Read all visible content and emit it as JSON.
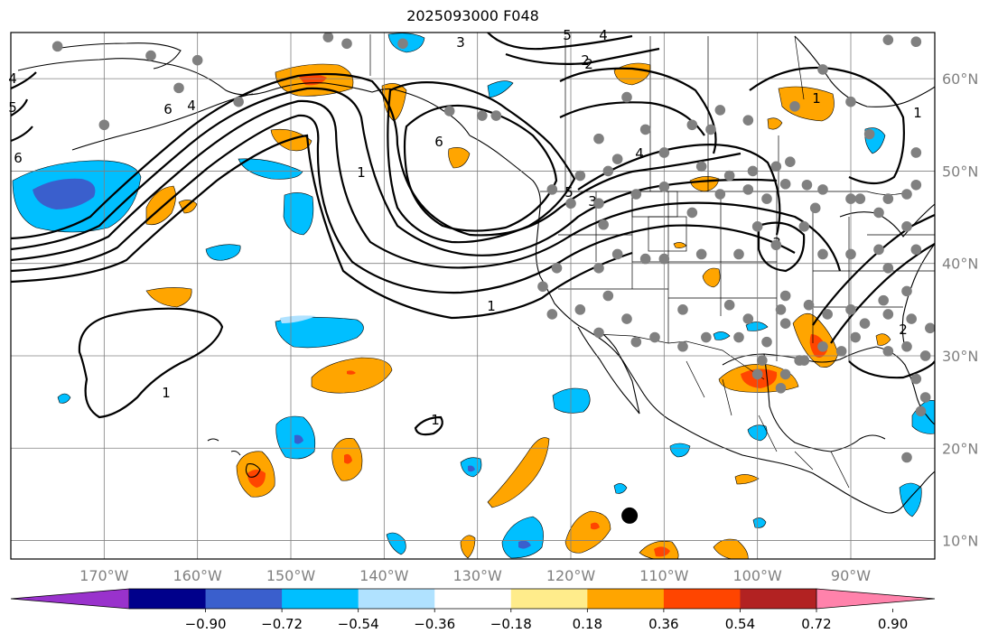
{
  "title": "2025093000 F048",
  "map": {
    "projection": "PlateCarree",
    "lon_range": [
      -180,
      -81
    ],
    "lat_range": [
      8,
      65
    ],
    "gridlines": true,
    "lon_ticks": [
      {
        "value": -170,
        "label": "170°W"
      },
      {
        "value": -160,
        "label": "160°W"
      },
      {
        "value": -150,
        "label": "150°W"
      },
      {
        "value": -140,
        "label": "140°W"
      },
      {
        "value": -130,
        "label": "130°W"
      },
      {
        "value": -120,
        "label": "120°W"
      },
      {
        "value": -110,
        "label": "110°W"
      },
      {
        "value": -100,
        "label": "100°W"
      },
      {
        "value": -90,
        "label": "90°W"
      }
    ],
    "lat_ticks": [
      {
        "value": 60,
        "label": "60°N"
      },
      {
        "value": 50,
        "label": "50°N"
      },
      {
        "value": 40,
        "label": "40°N"
      },
      {
        "value": 30,
        "label": "30°N"
      },
      {
        "value": 20,
        "label": "20°N"
      },
      {
        "value": 10,
        "label": "10°N"
      }
    ],
    "storm_marker": {
      "lon": -113.7,
      "lat": 12.7,
      "color": "#000000"
    },
    "station_color": "#808080",
    "stations": [
      [
        -175,
        63.5
      ],
      [
        -165,
        62.5
      ],
      [
        -160,
        62
      ],
      [
        -162,
        59
      ],
      [
        -155.6,
        57.5
      ],
      [
        -170,
        55
      ],
      [
        -146,
        64.5
      ],
      [
        -144,
        63.8
      ],
      [
        -138,
        63.8
      ],
      [
        -133,
        56.5
      ],
      [
        -129.5,
        56.0
      ],
      [
        -128,
        56
      ],
      [
        -119,
        49.5
      ],
      [
        -116.5,
        44.2
      ],
      [
        -117,
        53.5
      ],
      [
        -122,
        48
      ],
      [
        -116,
        50
      ],
      [
        -114,
        58
      ],
      [
        -112,
        54.5
      ],
      [
        -107,
        55
      ],
      [
        -105,
        54.5
      ],
      [
        -104,
        56.6
      ],
      [
        -101,
        55.5
      ],
      [
        -96,
        57
      ],
      [
        -93,
        61
      ],
      [
        -86,
        64.2
      ],
      [
        -83,
        64
      ],
      [
        -90,
        57.5
      ],
      [
        -88,
        54
      ],
      [
        -83,
        52
      ],
      [
        -83,
        48.5
      ],
      [
        -87,
        45.5
      ],
      [
        -90,
        47
      ],
      [
        -94.7,
        48.5
      ],
      [
        -93.8,
        46
      ],
      [
        -97,
        48.6
      ],
      [
        -99,
        47
      ],
      [
        -101,
        48
      ],
      [
        -104,
        47.5
      ],
      [
        -107,
        45.5
      ],
      [
        -110,
        48.3
      ],
      [
        -113,
        47.5
      ],
      [
        -117,
        46.5
      ],
      [
        -120,
        46.5
      ],
      [
        -115,
        51.3
      ],
      [
        -110,
        52
      ],
      [
        -106,
        50.5
      ],
      [
        -103,
        49.5
      ],
      [
        -100.5,
        50
      ],
      [
        -98,
        50.5
      ],
      [
        -96.5,
        51
      ],
      [
        -93,
        48
      ],
      [
        -89,
        47
      ],
      [
        -86,
        47
      ],
      [
        -84,
        47.5
      ],
      [
        -84,
        44
      ],
      [
        -83,
        41.5
      ],
      [
        -87,
        41.5
      ],
      [
        -90,
        41
      ],
      [
        -93,
        41
      ],
      [
        -95,
        44
      ],
      [
        -98,
        42
      ],
      [
        -100,
        44
      ],
      [
        -102,
        41
      ],
      [
        -106,
        41
      ],
      [
        -110,
        40.5
      ],
      [
        -112,
        40.5
      ],
      [
        -115,
        41
      ],
      [
        -117,
        39.5
      ],
      [
        -121.5,
        39.5
      ],
      [
        -123,
        37.5
      ],
      [
        -122,
        34.5
      ],
      [
        -119,
        35
      ],
      [
        -116,
        36.5
      ],
      [
        -114,
        34
      ],
      [
        -111,
        32
      ],
      [
        -108,
        35
      ],
      [
        -103,
        35.5
      ],
      [
        -101,
        34
      ],
      [
        -97.5,
        35
      ],
      [
        -97,
        36.5
      ],
      [
        -94.5,
        35.5
      ],
      [
        -92.5,
        34.5
      ],
      [
        -90,
        35
      ],
      [
        -88.5,
        33.5
      ],
      [
        -86,
        34.5
      ],
      [
        -83.5,
        34
      ],
      [
        -81.5,
        33
      ],
      [
        -82,
        30
      ],
      [
        -84,
        31
      ],
      [
        -86,
        30.5
      ],
      [
        -89.5,
        32
      ],
      [
        -91,
        30.5
      ],
      [
        -93,
        31
      ],
      [
        -95.5,
        29.5
      ],
      [
        -97,
        28
      ],
      [
        -99,
        31.5
      ],
      [
        -102,
        32
      ],
      [
        -105.5,
        32
      ],
      [
        -108,
        31
      ],
      [
        -113,
        31.5
      ],
      [
        -117,
        32.5
      ],
      [
        -97.5,
        26.5
      ],
      [
        -99.5,
        29.5
      ],
      [
        -100,
        28
      ],
      [
        -95,
        29.5
      ],
      [
        -97,
        33.5
      ],
      [
        -86,
        39.5
      ],
      [
        -84,
        37
      ],
      [
        -86.5,
        36
      ],
      [
        -83,
        27.5
      ],
      [
        -82,
        25.5
      ],
      [
        -82.5,
        24
      ],
      [
        -84,
        19
      ]
    ],
    "colorbar": {
      "ticks": [
        -0.9,
        -0.72,
        -0.54,
        -0.36,
        -0.18,
        0.18,
        0.36,
        0.54,
        0.72,
        0.9
      ],
      "tick_labels": [
        "−0.90",
        "−0.72",
        "−0.54",
        "−0.36",
        "−0.18",
        "0.18",
        "0.36",
        "0.54",
        "0.72",
        "0.90"
      ],
      "colors": [
        "#9932cc",
        "#00008b",
        "#3a5fcd",
        "#00bfff",
        "#b0e2ff",
        "#ffffff",
        "#ffec8b",
        "#ffa500",
        "#ff4500",
        "#b22222",
        "#ff82ab"
      ]
    },
    "contour_labels": [
      "5",
      "4",
      "3",
      "2",
      "6",
      "1",
      "4",
      "6",
      "5",
      "3",
      "2",
      "1",
      "4",
      "3",
      "2",
      "1",
      "1",
      "1",
      "6",
      "5",
      "4",
      "1",
      "2"
    ]
  }
}
